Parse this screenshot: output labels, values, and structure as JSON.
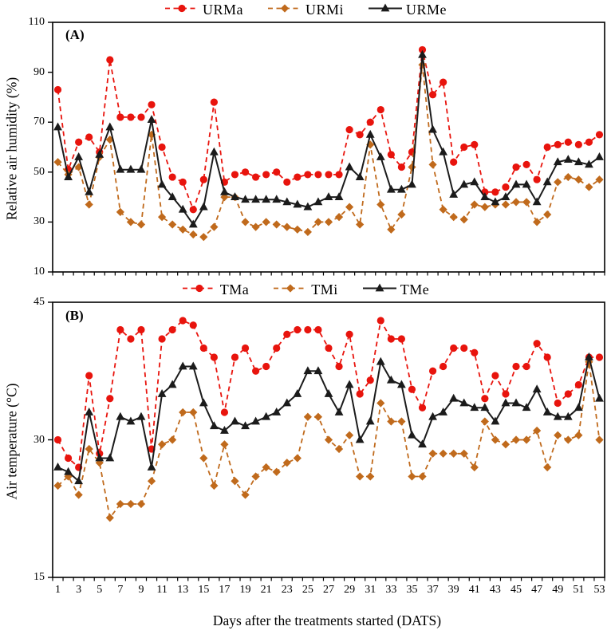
{
  "colors": {
    "max_series": "#e8140d",
    "min_series": "#c06a1c",
    "mean_series": "#1b1b1b",
    "axis": "#000000",
    "background": "#ffffff"
  },
  "xlabel": "Days after the treatments started (DATS)",
  "chart_data": [
    {
      "type": "line",
      "panel_label": "(A)",
      "ylabel": "Relative air humidity (%)",
      "ylim": [
        10,
        110
      ],
      "yticks": [
        110,
        90,
        70,
        50,
        30,
        10
      ],
      "x": [
        1,
        2,
        3,
        4,
        5,
        6,
        7,
        8,
        9,
        10,
        11,
        12,
        13,
        14,
        15,
        16,
        17,
        18,
        19,
        20,
        21,
        22,
        23,
        24,
        25,
        26,
        27,
        28,
        29,
        30,
        31,
        32,
        33,
        34,
        35,
        36,
        37,
        38,
        39,
        40,
        41,
        42,
        43,
        44,
        45,
        46,
        47,
        48,
        49,
        50,
        51,
        52,
        53
      ],
      "xlim_days": [
        1,
        53
      ],
      "grid": "off",
      "legend_position": "top-center",
      "series": [
        {
          "name": "URMa",
          "marker": "circle",
          "line": "dashed",
          "color_key": "max_series",
          "values": [
            83,
            51,
            62,
            64,
            58,
            95,
            72,
            72,
            72,
            77,
            60,
            48,
            46,
            35,
            47,
            78,
            46,
            49,
            50,
            48,
            49,
            50,
            46,
            48,
            49,
            49,
            49,
            49,
            67,
            65,
            70,
            75,
            57,
            52,
            58,
            99,
            81,
            86,
            54,
            60,
            61,
            42,
            42,
            44,
            52,
            53,
            47,
            60,
            61,
            62,
            61,
            62,
            65
          ]
        },
        {
          "name": "URMi",
          "marker": "diamond",
          "line": "dashed",
          "color_key": "min_series",
          "values": [
            54,
            49,
            52,
            37,
            56,
            63,
            34,
            30,
            29,
            65,
            32,
            29,
            27,
            25,
            24,
            28,
            40,
            40,
            30,
            28,
            30,
            29,
            28,
            27,
            26,
            30,
            30,
            32,
            36,
            29,
            61,
            37,
            27,
            33,
            52,
            93,
            53,
            35,
            32,
            31,
            37,
            36,
            37,
            37,
            38,
            38,
            30,
            33,
            46,
            48,
            47,
            44,
            47
          ]
        },
        {
          "name": "URMe",
          "marker": "triangle",
          "line": "solid",
          "color_key": "mean_series",
          "values": [
            68,
            48,
            56,
            42,
            57,
            68,
            51,
            51,
            51,
            71,
            45,
            40,
            35,
            29,
            36,
            58,
            42,
            40,
            39,
            39,
            39,
            39,
            38,
            37,
            36,
            38,
            40,
            40,
            52,
            48,
            65,
            56,
            43,
            43,
            45,
            97,
            67,
            58,
            41,
            45,
            46,
            40,
            38,
            40,
            45,
            45,
            38,
            46,
            54,
            55,
            54,
            53,
            56
          ]
        }
      ]
    },
    {
      "type": "line",
      "panel_label": "(B)",
      "ylabel": "Air temperature (°C)",
      "ylim": [
        15,
        45
      ],
      "yticks": [
        45,
        30,
        15
      ],
      "x": [
        1,
        2,
        3,
        4,
        5,
        6,
        7,
        8,
        9,
        10,
        11,
        12,
        13,
        14,
        15,
        16,
        17,
        18,
        19,
        20,
        21,
        22,
        23,
        24,
        25,
        26,
        27,
        28,
        29,
        30,
        31,
        32,
        33,
        34,
        35,
        36,
        37,
        38,
        39,
        40,
        41,
        42,
        43,
        44,
        45,
        46,
        47,
        48,
        49,
        50,
        51,
        52,
        53
      ],
      "xlim_days": [
        1,
        53
      ],
      "grid": "off",
      "legend_position": "top-center",
      "xticklabels": [
        1,
        3,
        5,
        7,
        9,
        11,
        13,
        15,
        17,
        19,
        21,
        23,
        25,
        27,
        29,
        31,
        33,
        35,
        37,
        39,
        41,
        43,
        45,
        47,
        49,
        51,
        53
      ],
      "series": [
        {
          "name": "TMa",
          "marker": "circle",
          "line": "dashed",
          "color_key": "max_series",
          "values": [
            30,
            28,
            27,
            37,
            28.5,
            34.5,
            42,
            41,
            42,
            29,
            41,
            42,
            43,
            42.5,
            40,
            39,
            33,
            39,
            40,
            37.5,
            38,
            40,
            41.5,
            42,
            42,
            42,
            40,
            38,
            41.5,
            35,
            36.5,
            43,
            41,
            41,
            35.5,
            33.5,
            37.5,
            38,
            40,
            40,
            39.5,
            34.5,
            37,
            35,
            38,
            38,
            40.5,
            39,
            34,
            35,
            36,
            39,
            39
          ]
        },
        {
          "name": "TMi",
          "marker": "diamond",
          "line": "dashed",
          "color_key": "min_series",
          "values": [
            25,
            26,
            24,
            29,
            27.5,
            21.5,
            23,
            23,
            23,
            25.5,
            29.5,
            30,
            33,
            33,
            28,
            25,
            29.5,
            25.5,
            24,
            26,
            27,
            26.5,
            27.5,
            28,
            32.5,
            32.5,
            30,
            29,
            30.5,
            26,
            26,
            34,
            32,
            32,
            26,
            26,
            28.5,
            28.5,
            28.5,
            28.5,
            27,
            32,
            30,
            29.5,
            30,
            30,
            31,
            27,
            30.5,
            30,
            30.5,
            38.5,
            30
          ]
        },
        {
          "name": "TMe",
          "marker": "triangle",
          "line": "solid",
          "color_key": "mean_series",
          "values": [
            27,
            26.5,
            25.5,
            33,
            28,
            28,
            32.5,
            32,
            32.5,
            27,
            35,
            36,
            38,
            38,
            34,
            31.5,
            31,
            32,
            31.5,
            32,
            32.5,
            33,
            34,
            35,
            37.5,
            37.5,
            35,
            33,
            36,
            30,
            32,
            38.5,
            36.5,
            36,
            30.5,
            29.5,
            32.5,
            33,
            34.5,
            34,
            33.5,
            33.5,
            32,
            34,
            34,
            33.5,
            35.5,
            33,
            32.5,
            32.5,
            33.5,
            39,
            34.5
          ]
        }
      ]
    }
  ]
}
